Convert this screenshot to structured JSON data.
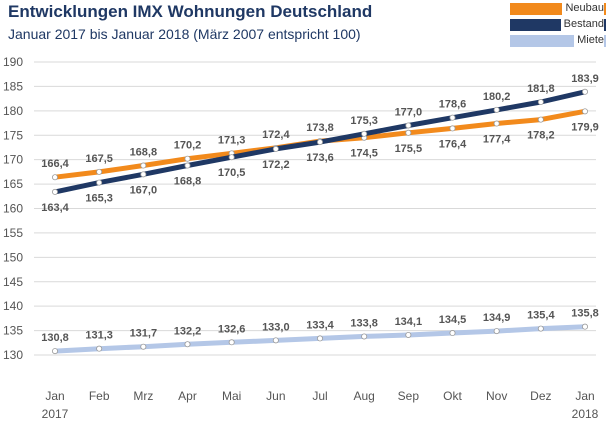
{
  "chart_data": {
    "type": "line",
    "title": "Entwicklungen IMX Wohnungen Deutschland",
    "subtitle": "Januar 2017 bis Januar 2018 (März 2007 entspricht 100)",
    "categories": [
      "Jan 2017",
      "Feb",
      "Mrz",
      "Apr",
      "Mai",
      "Jun",
      "Jul",
      "Aug",
      "Sep",
      "Okt",
      "Nov",
      "Dez",
      "Jan 2018"
    ],
    "yticks": [
      "190",
      "185",
      "180",
      "175",
      "170",
      "165",
      "160",
      "155",
      "150",
      "145",
      "140",
      "135",
      "130"
    ],
    "ylim": [
      130,
      190
    ],
    "grid": true,
    "legend_position": "top-right",
    "series": [
      {
        "name": "Neubau",
        "color": "#f28a1c",
        "values": [
          166.4,
          167.5,
          168.8,
          170.2,
          171.3,
          172.4,
          173.8,
          174.5,
          175.5,
          176.4,
          177.4,
          178.2,
          179.9
        ],
        "labels": [
          "166,4",
          "167,5",
          "168,8",
          "170,2",
          "171,3",
          "172,4",
          "173,8",
          "174,5",
          "175,5",
          "176,4",
          "177,4",
          "178,2",
          "179,9"
        ]
      },
      {
        "name": "Bestand",
        "color": "#1f3864",
        "values": [
          163.4,
          165.3,
          167.0,
          168.8,
          170.5,
          172.2,
          173.6,
          175.3,
          177.0,
          178.6,
          180.2,
          181.8,
          183.9
        ],
        "labels": [
          "163,4",
          "165,3",
          "167,0",
          "168,8",
          "170,5",
          "172,2",
          "173,6",
          "175,3",
          "177,0",
          "178,6",
          "180,2",
          "181,8",
          "183,9"
        ]
      },
      {
        "name": "Miete",
        "color": "#b4c7e7",
        "values": [
          130.8,
          131.3,
          131.7,
          132.2,
          132.6,
          133.0,
          133.4,
          133.8,
          134.1,
          134.5,
          134.9,
          135.4,
          135.8
        ],
        "labels": [
          "130,8",
          "131,3",
          "131,7",
          "132,2",
          "132,6",
          "133,0",
          "133,4",
          "133,8",
          "134,1",
          "134,5",
          "134,9",
          "135,4",
          "135,8"
        ]
      }
    ]
  }
}
